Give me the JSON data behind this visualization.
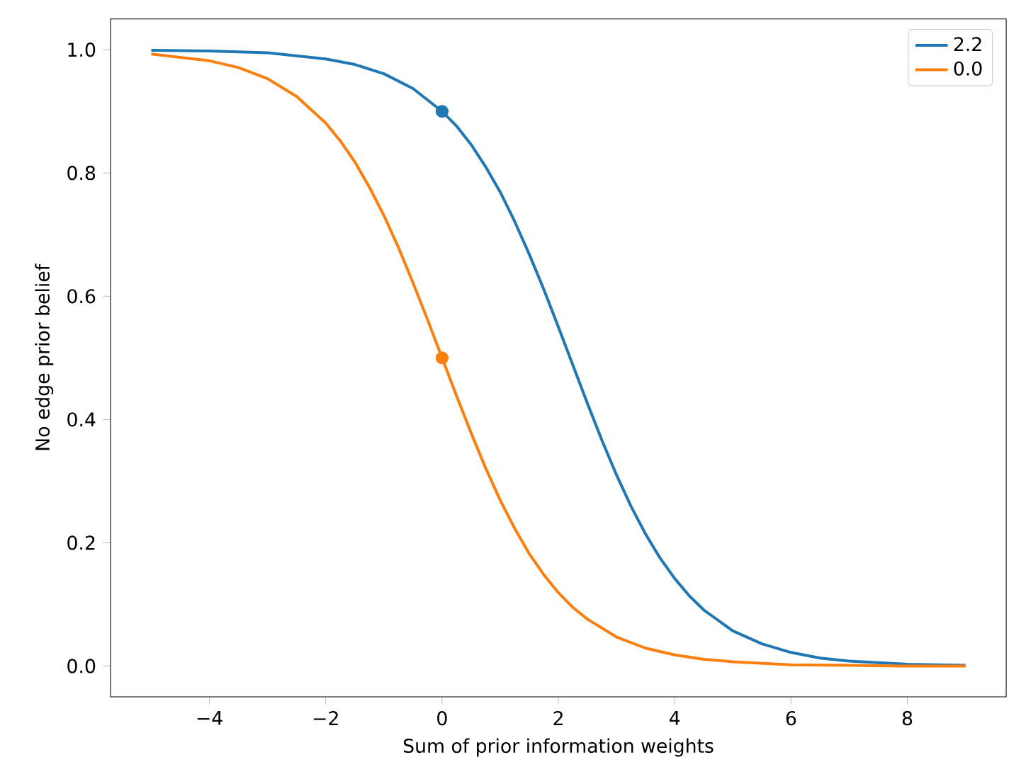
{
  "chart_data": {
    "type": "line",
    "xlabel": "Sum of prior information weights",
    "ylabel": "No edge prior belief",
    "xlim": [
      -5.7,
      9.7
    ],
    "ylim": [
      -0.05,
      1.05
    ],
    "xticks": [
      {
        "value": -4,
        "label": "−4"
      },
      {
        "value": -2,
        "label": "−2"
      },
      0,
      2,
      4,
      6,
      8
    ],
    "yticks": [
      {
        "value": 0,
        "label": "0.0"
      },
      {
        "value": 0.2,
        "label": "0.2"
      },
      {
        "value": 0.4,
        "label": "0.4"
      },
      {
        "value": 0.6,
        "label": "0.6"
      },
      {
        "value": 0.8,
        "label": "0.8"
      },
      {
        "value": 1,
        "label": "1.0"
      }
    ],
    "grid": false,
    "legend": "top right",
    "series": [
      {
        "name": "2.2",
        "color": "#1f77b4",
        "marker": "none",
        "x": [
          -5,
          -4,
          -3,
          -2,
          -1.5,
          -1,
          -0.5,
          0,
          0.25,
          0.5,
          0.75,
          1,
          1.25,
          1.5,
          1.75,
          2,
          2.25,
          2.5,
          2.75,
          3,
          3.25,
          3.5,
          3.75,
          4,
          4.25,
          4.5,
          5,
          5.5,
          6,
          6.5,
          7,
          8,
          9
        ],
        "values": [
          0.999,
          0.998,
          0.995,
          0.985,
          0.976,
          0.961,
          0.937,
          0.9,
          0.876,
          0.846,
          0.81,
          0.769,
          0.721,
          0.668,
          0.611,
          0.55,
          0.488,
          0.426,
          0.366,
          0.31,
          0.259,
          0.214,
          0.175,
          0.142,
          0.114,
          0.091,
          0.057,
          0.036,
          0.022,
          0.013,
          0.008,
          0.003,
          0.001
        ]
      },
      {
        "name": "0.0",
        "color": "#ff7f0e",
        "marker": "none",
        "x": [
          -5,
          -4,
          -3.5,
          -3,
          -2.5,
          -2,
          -1.75,
          -1.5,
          -1.25,
          -1,
          -0.75,
          -0.5,
          -0.25,
          0,
          0.25,
          0.5,
          0.75,
          1,
          1.25,
          1.5,
          1.75,
          2,
          2.25,
          2.5,
          3,
          3.5,
          4,
          4.5,
          5,
          6,
          7,
          8,
          9
        ],
        "values": [
          0.993,
          0.982,
          0.971,
          0.953,
          0.924,
          0.881,
          0.852,
          0.818,
          0.777,
          0.731,
          0.679,
          0.622,
          0.562,
          0.5,
          0.438,
          0.378,
          0.321,
          0.269,
          0.223,
          0.182,
          0.148,
          0.119,
          0.095,
          0.076,
          0.047,
          0.029,
          0.018,
          0.011,
          0.007,
          0.002,
          0.001,
          0.0,
          0.0
        ]
      },
      {
        "type": "scatter",
        "color": "#1f77b4",
        "marker": "circle",
        "x": [
          0
        ],
        "values": [
          0.9
        ]
      },
      {
        "type": "scatter",
        "color": "#ff7f0e",
        "marker": "circle",
        "x": [
          0
        ],
        "values": [
          0.5
        ]
      }
    ]
  }
}
